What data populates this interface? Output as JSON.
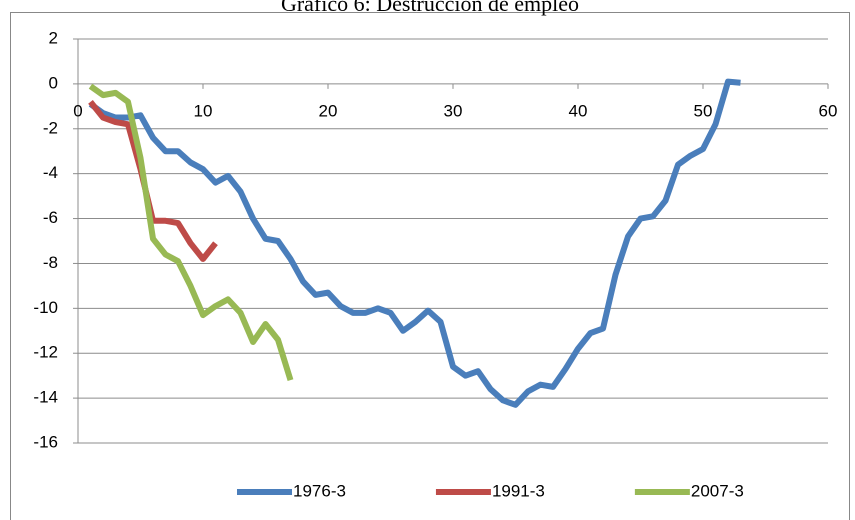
{
  "chart_data": {
    "type": "line",
    "title": "Gráfico 6: Destrucción de empleo",
    "x": [
      1,
      2,
      3,
      4,
      5,
      6,
      7,
      8,
      9,
      10,
      11,
      12,
      13,
      14,
      15,
      16,
      17,
      18,
      19,
      20,
      21,
      22,
      23,
      24,
      25,
      26,
      27,
      28,
      29,
      30,
      31,
      32,
      33,
      34,
      35,
      36,
      37,
      38,
      39,
      40,
      41,
      42,
      43,
      44,
      45,
      46,
      47,
      48,
      49,
      50,
      51,
      52,
      53
    ],
    "series": [
      {
        "name": "1976-3",
        "color": "#4a7ebb",
        "values": [
          -0.9,
          -1.3,
          -1.5,
          -1.5,
          -1.4,
          -2.4,
          -3.0,
          -3.0,
          -3.5,
          -3.8,
          -4.4,
          -4.1,
          -4.8,
          -6.0,
          -6.9,
          -7.0,
          -7.8,
          -8.8,
          -9.4,
          -9.3,
          -9.9,
          -10.2,
          -10.2,
          -10.0,
          -10.2,
          -11.0,
          -10.6,
          -10.1,
          -10.6,
          -12.6,
          -13.0,
          -12.8,
          -13.6,
          -14.1,
          -14.3,
          -13.7,
          -13.4,
          -13.5,
          -12.7,
          -11.8,
          -11.1,
          -10.9,
          -8.5,
          -6.8,
          -6.0,
          -5.9,
          -5.2,
          -3.6,
          -3.2,
          -2.9,
          -1.8,
          0.1,
          0.05
        ]
      },
      {
        "name": "1991-3",
        "color": "#be4b48",
        "values": [
          -0.8,
          -1.5,
          -1.7,
          -1.8,
          -3.8,
          -6.1,
          -6.1,
          -6.2,
          -7.1,
          -7.8,
          -7.1,
          null,
          null,
          null,
          null,
          null,
          null,
          null,
          null,
          null,
          null,
          null,
          null,
          null,
          null,
          null,
          null,
          null,
          null,
          null,
          null,
          null,
          null,
          null,
          null,
          null,
          null,
          null,
          null,
          null,
          null,
          null,
          null,
          null,
          null,
          null,
          null,
          null,
          null,
          null,
          null,
          null,
          null
        ]
      },
      {
        "name": "2007-3",
        "color": "#98b954",
        "values": [
          -0.1,
          -0.5,
          -0.4,
          -0.8,
          -3.3,
          -6.9,
          -7.6,
          -7.9,
          -9.0,
          -10.3,
          -9.9,
          -9.6,
          -10.2,
          -11.5,
          -10.7,
          -11.4,
          -13.2,
          null,
          null,
          null,
          null,
          null,
          null,
          null,
          null,
          null,
          null,
          null,
          null,
          null,
          null,
          null,
          null,
          null,
          null,
          null,
          null,
          null,
          null,
          null,
          null,
          null,
          null,
          null,
          null,
          null,
          null,
          null,
          null,
          null,
          null,
          null,
          null
        ]
      }
    ],
    "xlim": [
      0,
      60
    ],
    "xticks": [
      0,
      10,
      20,
      30,
      40,
      50,
      60
    ],
    "ylim": [
      -16,
      2
    ],
    "yticks": [
      -16,
      -14,
      -12,
      -10,
      -8,
      -6,
      -4,
      -2,
      0,
      2
    ],
    "grid": true,
    "legend": "bottom"
  }
}
